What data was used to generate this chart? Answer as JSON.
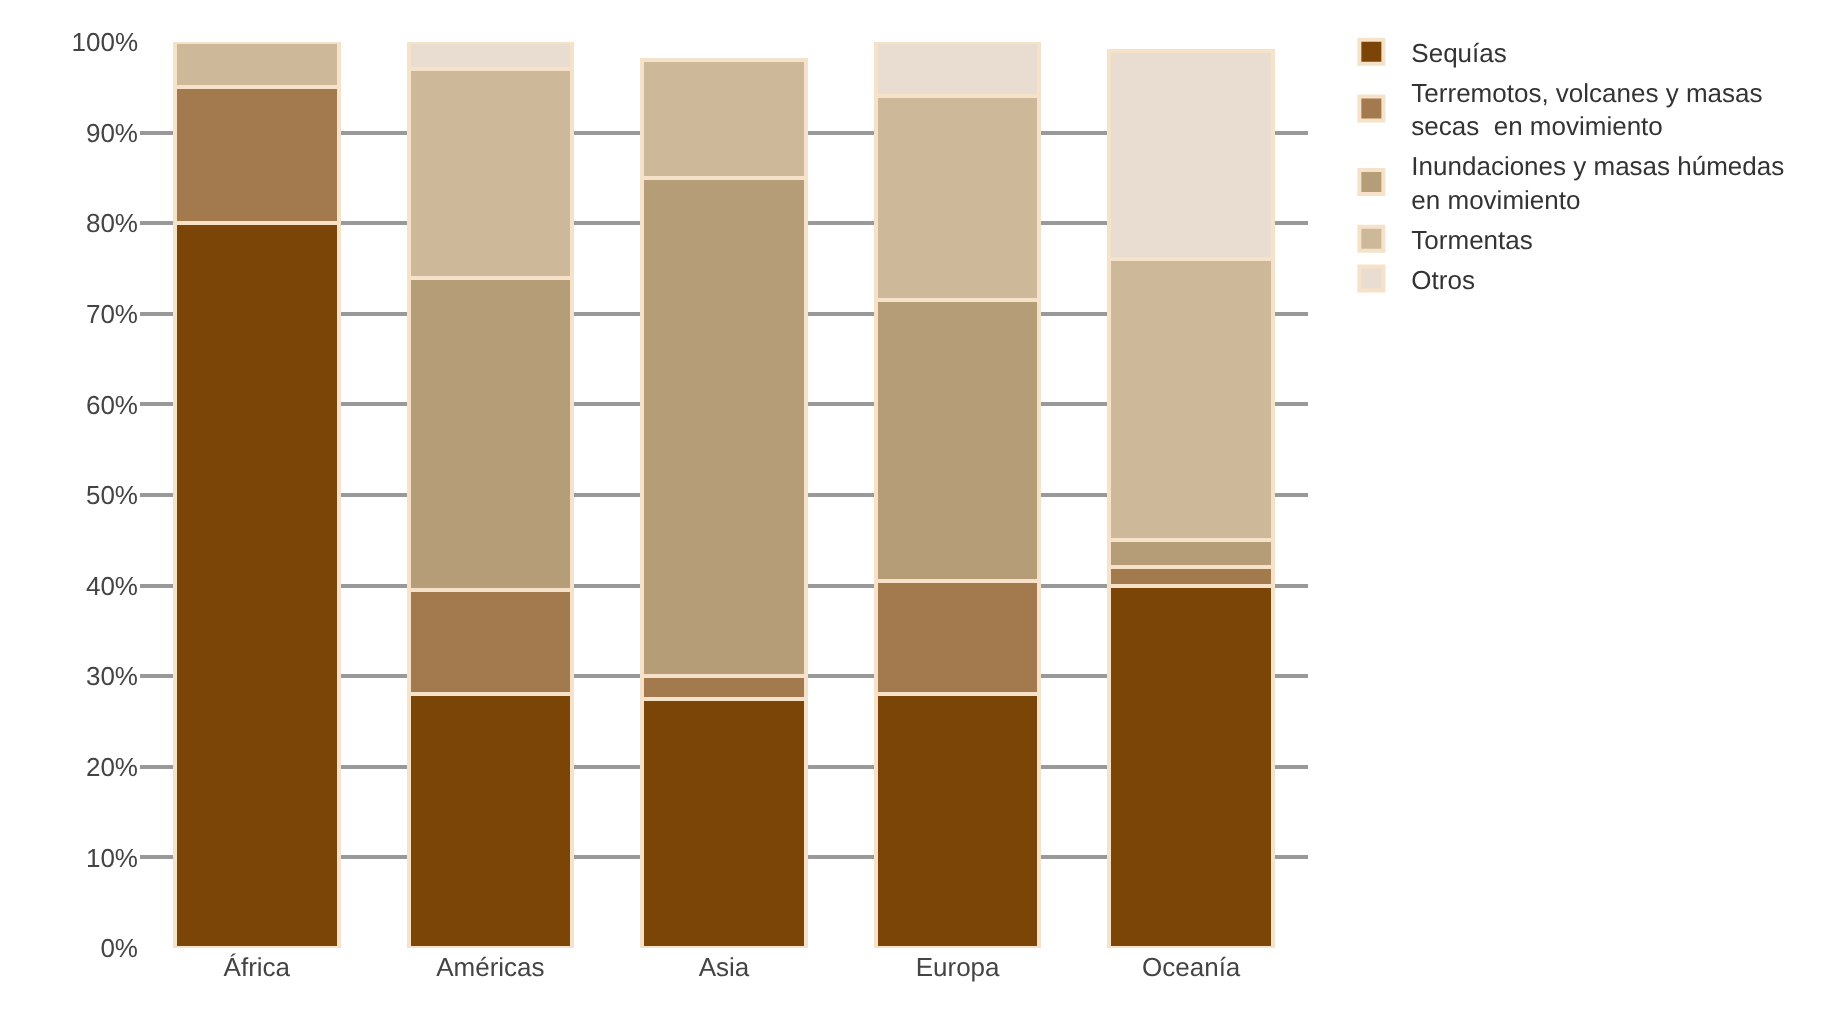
{
  "chart_data": {
    "type": "bar",
    "stacked": true,
    "categories": [
      "África",
      "Américas",
      "Asia",
      "Europa",
      "Oceanía"
    ],
    "series": [
      {
        "name": "Sequías",
        "color": "#7a4506",
        "values": [
          80,
          28,
          27.5,
          28,
          40
        ]
      },
      {
        "name": "Terremotos, volcanes y masas secas  en movimiento",
        "color": "#a27a4e",
        "values": [
          15,
          11.5,
          2.5,
          12.5,
          2
        ]
      },
      {
        "name": "Inundaciones y masas húmedas en movimiento",
        "color": "#b59d78",
        "values": [
          0,
          34.5,
          55,
          31,
          3
        ]
      },
      {
        "name": "Tormentas",
        "color": "#cdb89a",
        "values": [
          5,
          23,
          13,
          22.5,
          31
        ]
      },
      {
        "name": "Otros",
        "color": "#e8ddd0",
        "values": [
          0,
          3,
          0,
          6,
          23
        ]
      }
    ],
    "ylim": [
      0,
      100
    ],
    "yticks": [
      {
        "value": 0,
        "label": "0%"
      },
      {
        "value": 10,
        "label": "10%"
      },
      {
        "value": 20,
        "label": "20%"
      },
      {
        "value": 30,
        "label": "30%"
      },
      {
        "value": 40,
        "label": "40%"
      },
      {
        "value": 50,
        "label": "50%"
      },
      {
        "value": 60,
        "label": "60%"
      },
      {
        "value": 70,
        "label": "70%"
      },
      {
        "value": 80,
        "label": "80%"
      },
      {
        "value": 90,
        "label": "90%"
      },
      {
        "value": 100,
        "label": "100%"
      }
    ],
    "grid": "y",
    "legend": "top right"
  }
}
